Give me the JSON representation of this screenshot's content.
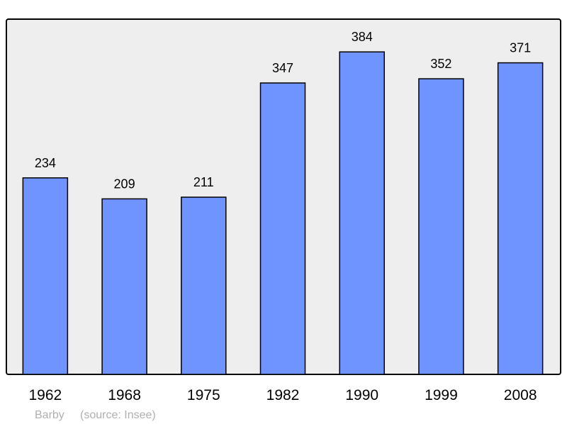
{
  "chart_data": {
    "type": "bar",
    "categories": [
      "1962",
      "1968",
      "1975",
      "1982",
      "1990",
      "1999",
      "2008"
    ],
    "values": [
      234,
      209,
      211,
      347,
      384,
      352,
      371
    ],
    "data_labels": [
      "234",
      "209",
      "211",
      "347",
      "384",
      "352",
      "371"
    ],
    "title": "",
    "xlabel": "",
    "ylabel": "",
    "ylim": [
      0,
      423
    ],
    "grid": false,
    "bar_color": "#7094ff",
    "background_color": "#eeeeee"
  },
  "footer": {
    "place": "Barby",
    "source": "(source: Insee)"
  }
}
